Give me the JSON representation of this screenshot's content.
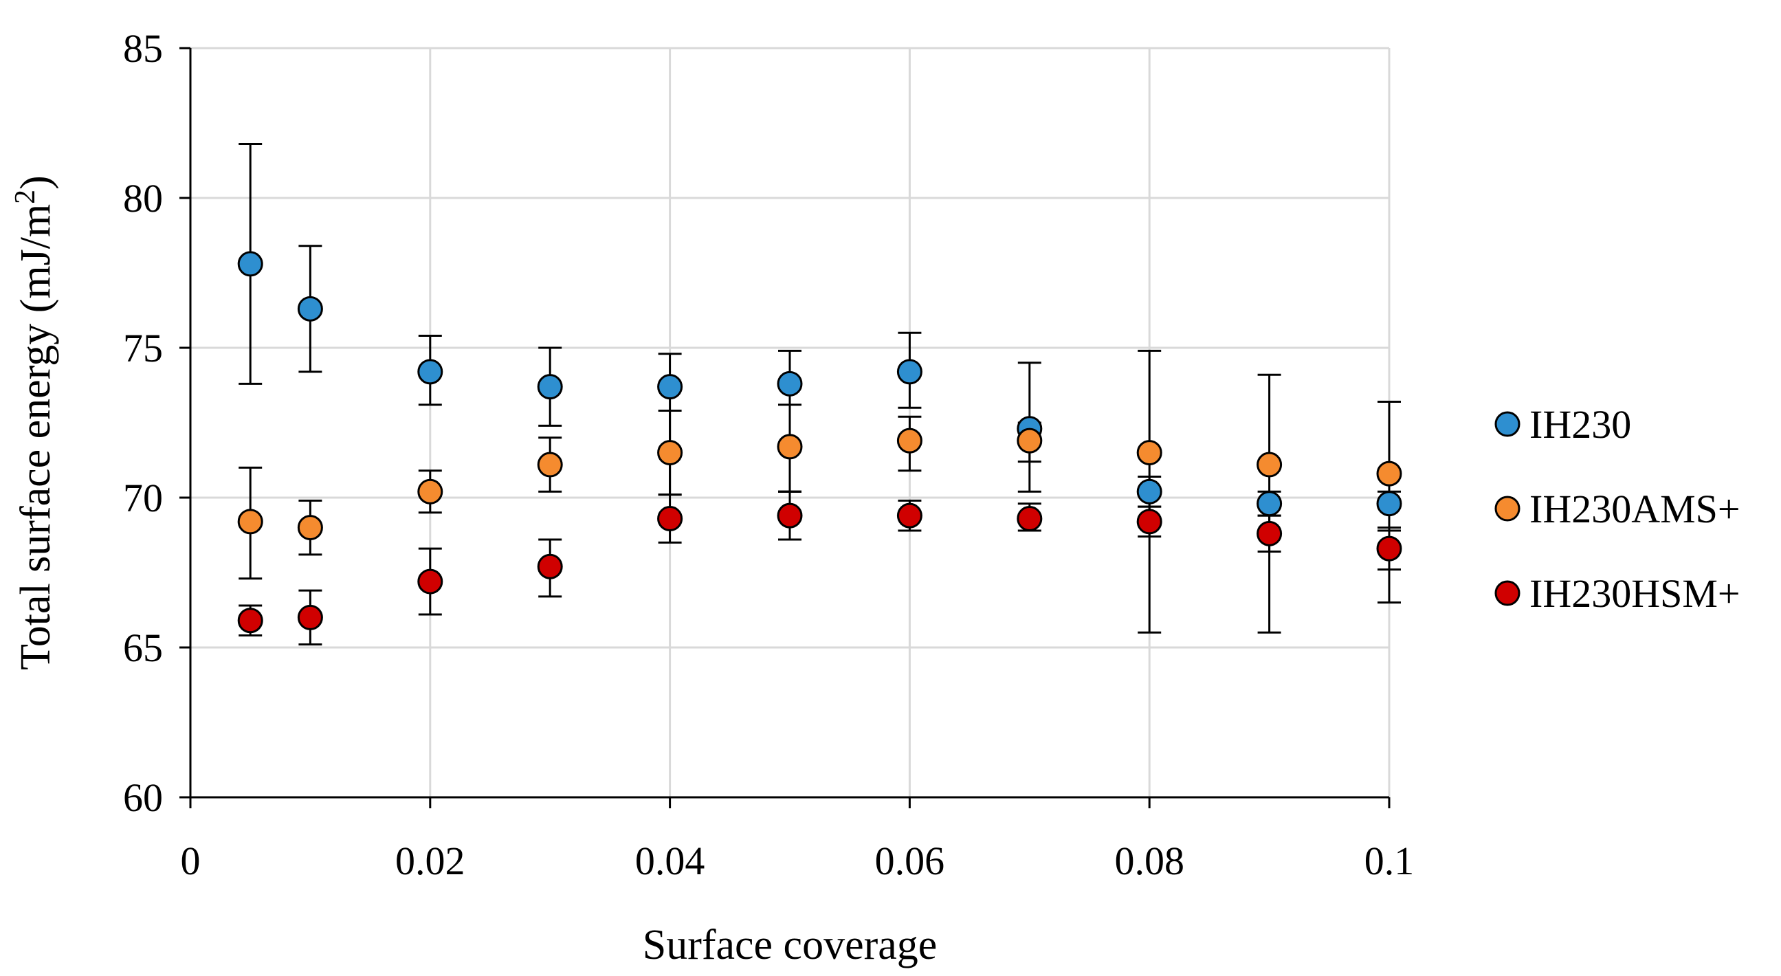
{
  "chart_data": {
    "type": "scatter",
    "title": "",
    "xlabel": "Surface coverage",
    "ylabel_main": "Total surface energy (mJ/m",
    "ylabel_sup": "2",
    "ylabel_close": ")",
    "xlim": [
      0,
      0.1
    ],
    "ylim": [
      60,
      85
    ],
    "xticks": [
      0,
      0.02,
      0.04,
      0.06,
      0.08,
      0.1
    ],
    "xtick_labels": [
      "0",
      "0.02",
      "0.04",
      "0.06",
      "0.08",
      "0.1"
    ],
    "yticks": [
      60,
      65,
      70,
      75,
      80,
      85
    ],
    "ytick_labels": [
      "60",
      "65",
      "70",
      "75",
      "80",
      "85"
    ],
    "grid": true,
    "legend_position": "right",
    "error_bars": true,
    "x": [
      0.005,
      0.01,
      0.02,
      0.03,
      0.04,
      0.05,
      0.06,
      0.07,
      0.08,
      0.09,
      0.1
    ],
    "series": [
      {
        "name": "IH230",
        "color": "#2E8FD0",
        "values": [
          77.8,
          76.3,
          74.2,
          73.7,
          73.7,
          73.8,
          74.2,
          72.3,
          70.2,
          69.8,
          69.8
        ],
        "err_low": [
          4.0,
          2.1,
          1.1,
          1.3,
          3.6,
          3.6,
          1.2,
          2.1,
          0.5,
          0.4,
          0.9
        ],
        "err_high": [
          4.0,
          2.1,
          1.2,
          1.3,
          1.1,
          1.1,
          1.3,
          2.2,
          0.5,
          0.4,
          0.4
        ]
      },
      {
        "name": "IH230AMS+",
        "color": "#F58B2F",
        "values": [
          69.2,
          69.0,
          70.2,
          71.1,
          71.5,
          71.7,
          71.9,
          71.9,
          71.5,
          71.1,
          70.8
        ],
        "err_low": [
          1.9,
          0.9,
          0.7,
          0.9,
          1.4,
          1.5,
          1.0,
          0.7,
          6.0,
          5.6,
          4.3
        ],
        "err_high": [
          1.8,
          0.9,
          0.7,
          0.9,
          1.4,
          1.4,
          0.8,
          0.6,
          3.4,
          3.0,
          2.4
        ]
      },
      {
        "name": "IH230HSM+",
        "color": "#D00000",
        "values": [
          65.9,
          66.0,
          67.2,
          67.7,
          69.3,
          69.4,
          69.4,
          69.3,
          69.2,
          68.8,
          68.3
        ],
        "err_low": [
          0.5,
          0.9,
          1.1,
          1.0,
          0.8,
          0.8,
          0.5,
          0.4,
          0.5,
          0.6,
          0.7
        ],
        "err_high": [
          0.5,
          0.9,
          1.1,
          0.9,
          0.8,
          0.8,
          0.5,
          0.5,
          0.5,
          0.6,
          0.7
        ]
      }
    ]
  }
}
